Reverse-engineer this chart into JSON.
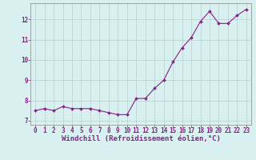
{
  "x": [
    0,
    1,
    2,
    3,
    4,
    5,
    6,
    7,
    8,
    9,
    10,
    11,
    12,
    13,
    14,
    15,
    16,
    17,
    18,
    19,
    20,
    21,
    22,
    23
  ],
  "y": [
    7.5,
    7.6,
    7.5,
    7.7,
    7.6,
    7.6,
    7.6,
    7.5,
    7.4,
    7.3,
    7.3,
    8.1,
    8.1,
    8.6,
    9.0,
    9.9,
    10.6,
    11.1,
    11.9,
    12.4,
    11.8,
    11.8,
    12.2,
    12.5
  ],
  "line_color": "#882288",
  "marker": "D",
  "marker_size": 2.0,
  "linewidth": 0.8,
  "bg_color": "#d8f0f0",
  "grid_color": "#b8d0d0",
  "xlabel": "Windchill (Refroidissement éolien,°C)",
  "xlabel_fontsize": 6.5,
  "xlabel_color": "#882288",
  "ylabel_ticks": [
    7,
    8,
    9,
    10,
    11,
    12
  ],
  "xtick_labels": [
    "0",
    "1",
    "2",
    "3",
    "4",
    "5",
    "6",
    "7",
    "8",
    "9",
    "10",
    "11",
    "12",
    "13",
    "14",
    "15",
    "16",
    "17",
    "18",
    "19",
    "20",
    "21",
    "22",
    "23"
  ],
  "tick_color": "#882288",
  "ylim": [
    6.8,
    12.8
  ],
  "xlim": [
    -0.5,
    23.5
  ],
  "tick_fontsize": 5.5,
  "grid_linewidth": 0.5,
  "spine_color": "#888888",
  "xlabel_bold": true
}
